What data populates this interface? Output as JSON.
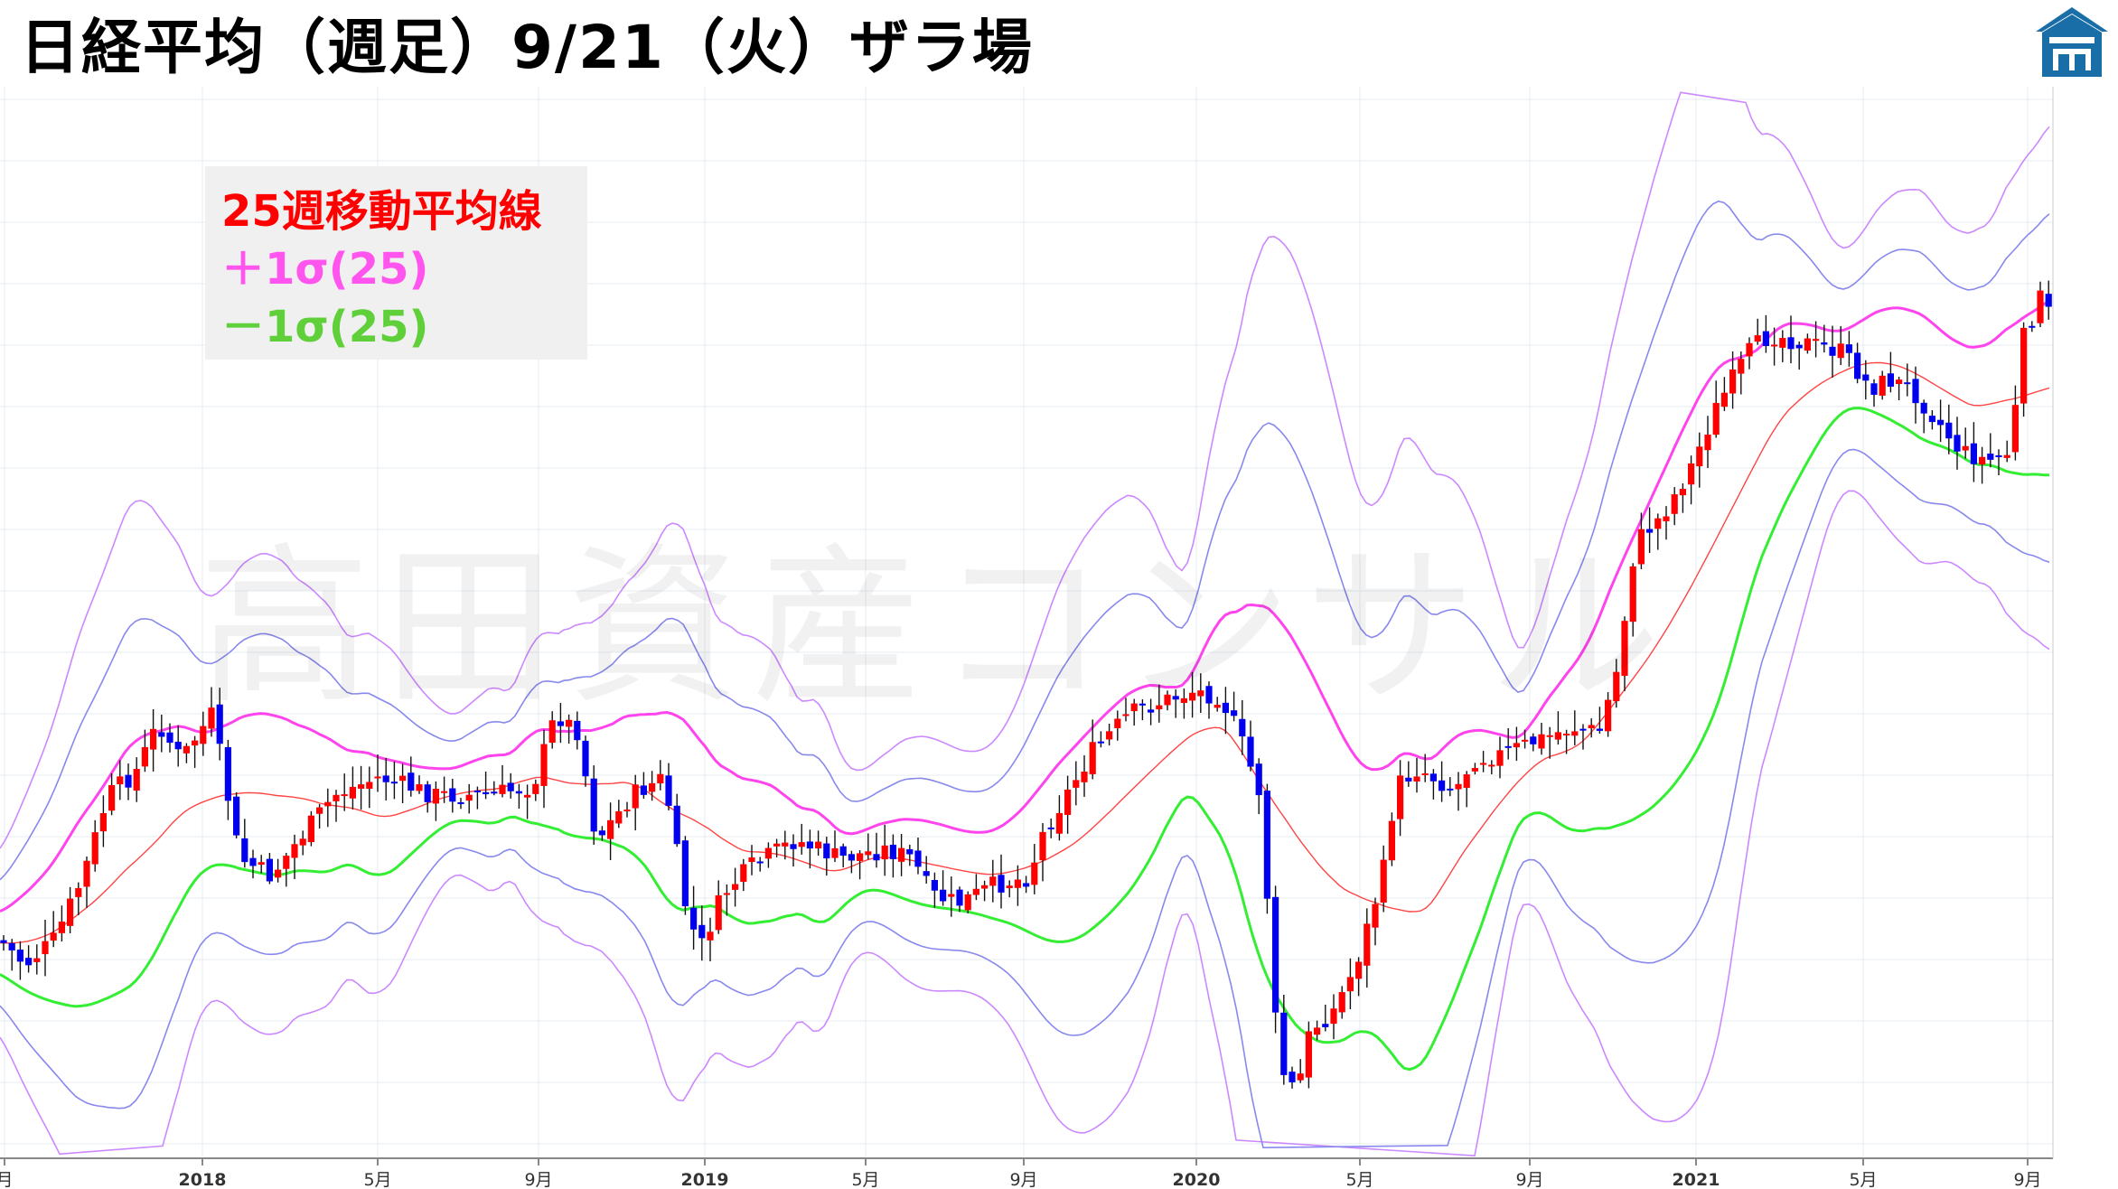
{
  "title": "日経平均（週足）9/21（火）ザラ場",
  "watermark": "高田資産コンサル",
  "legend": [
    {
      "label": "25週移動平均線",
      "color": "#ff0000"
    },
    {
      "label": "＋1σ(25)",
      "color": "#ff55ee"
    },
    {
      "label": "－1σ(25)",
      "color": "#44dd44"
    }
  ],
  "logo_icon": "building-logo-icon",
  "colors": {
    "up": "#ff0000",
    "down": "#0000ee",
    "sma": "#ff4444",
    "plus1": "#ff44ee",
    "minus1": "#33ee33",
    "plus2": "#8888ee",
    "plus3": "#cc88ff",
    "grid": "#e6ecf3",
    "logo": "#1a6ea8"
  },
  "chart_data": {
    "type": "candlestick",
    "x_tick_labels": [
      "月",
      "2018",
      "5月",
      "9月",
      "2019",
      "5月",
      "9月",
      "2020",
      "5月",
      "9月",
      "2021",
      "5月",
      "9月"
    ],
    "series": [
      {
        "name": "25週移動平均線",
        "values": []
      },
      {
        "name": "＋1σ(25)",
        "values": []
      },
      {
        "name": "－1σ(25)",
        "values": []
      }
    ]
  }
}
